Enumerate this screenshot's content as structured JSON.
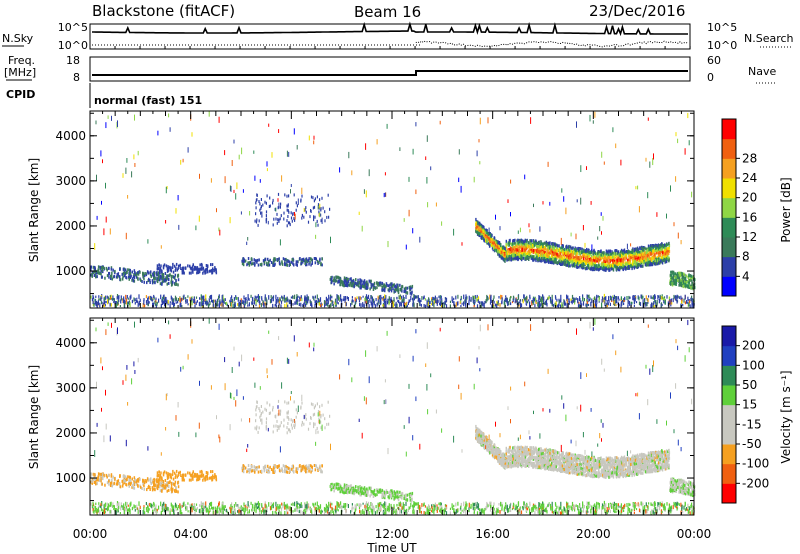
{
  "header": {
    "title": "Blackstone (fitACF)",
    "beam": "Beam 16",
    "date": "23/Dec/2016"
  },
  "strip_labels": {
    "nsky": "N.Sky",
    "nsearch": "N.Search",
    "freq": "Freq.",
    "mhz": "[MHz]",
    "nave": "Nave",
    "cpid": "CPID",
    "cpid_value": "normal (fast) 151",
    "noise_left_ticks": [
      "10^5",
      "10^0"
    ],
    "noise_right_ticks": [
      "10^5",
      "10^0"
    ],
    "freq_ticks": [
      "18",
      "8"
    ],
    "nave_ticks": [
      "60",
      "0"
    ]
  },
  "colors": {
    "power": [
      "#0000ff",
      "#2c3fa8",
      "#3a7a5a",
      "#2e8b57",
      "#8fd645",
      "#f0e000",
      "#f5a020",
      "#f06010",
      "#ff0000"
    ],
    "velocity": [
      "#1a1aa8",
      "#2040c0",
      "#2e8b57",
      "#5fd03a",
      "#c8c8c0",
      "#c8c8c0",
      "#f5a020",
      "#f06010",
      "#ff0000"
    ]
  },
  "chart_data": [
    {
      "type": "heatmap",
      "panel": "power",
      "ylabel": "Slant Range [km]",
      "y_ticks": [
        1000,
        2000,
        3000,
        4000
      ],
      "ylim": [
        180,
        4550
      ],
      "colorbar_label": "Power [dB]",
      "colorbar_ticks": [
        4,
        8,
        12,
        16,
        20,
        24,
        28
      ],
      "colorbar_range": [
        0,
        30
      ],
      "x_ticks": [
        "00:00",
        "04:00",
        "08:00",
        "12:00",
        "16:00",
        "20:00",
        "00:00"
      ],
      "xlim_hours": [
        0,
        24
      ]
    },
    {
      "type": "heatmap",
      "panel": "velocity",
      "ylabel": "Slant Range [km]",
      "y_ticks": [
        1000,
        2000,
        3000,
        4000
      ],
      "ylim": [
        180,
        4550
      ],
      "colorbar_label": "Velocity [m s⁻¹]",
      "colorbar_ticks": [
        "200",
        "100",
        "50",
        "15",
        "-15",
        "-50",
        "-100",
        "-200"
      ],
      "x_ticks": [
        "00:00",
        "04:00",
        "08:00",
        "12:00",
        "16:00",
        "20:00",
        "00:00"
      ],
      "xlabel": "Time UT",
      "xlim_hours": [
        0,
        24
      ]
    }
  ]
}
